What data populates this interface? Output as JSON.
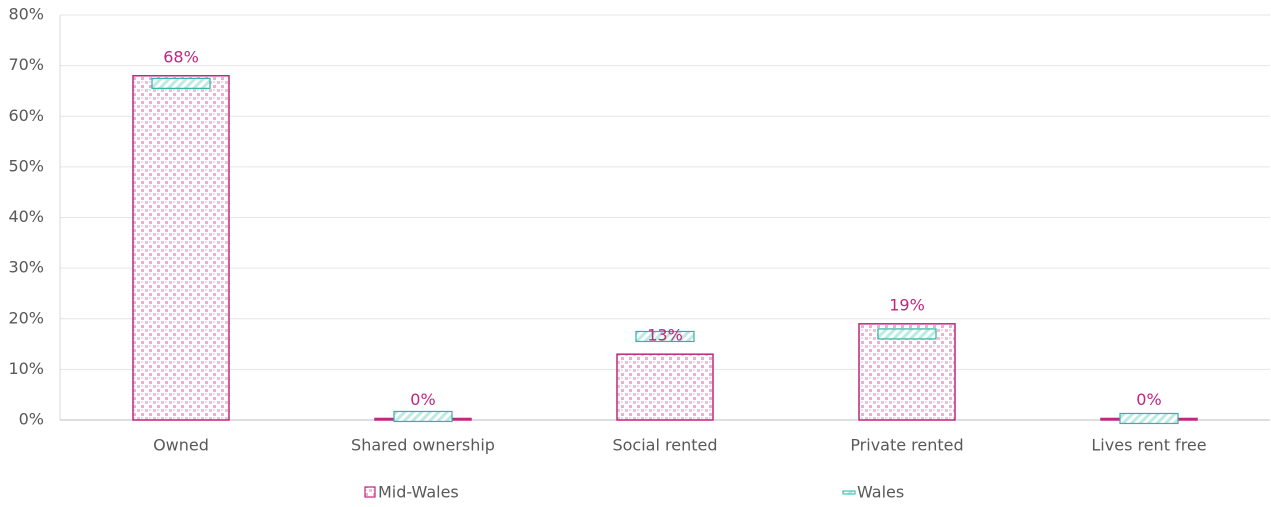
{
  "chart_data": {
    "type": "bar",
    "categories": [
      "Owned",
      "Shared ownership",
      "Social rented",
      "Private rented",
      "Lives rent free"
    ],
    "series": [
      {
        "name": "Mid-Wales",
        "color": "#c0267f",
        "values": [
          68,
          0.3,
          13,
          19,
          0.3
        ],
        "value_labels": [
          "68%",
          "0%",
          "13%",
          "19%",
          "0%"
        ]
      },
      {
        "name": "Wales",
        "color": "#2bb5a5",
        "values": [
          66.5,
          0.7,
          16.5,
          17,
          0.3
        ]
      }
    ],
    "ylim": [
      0,
      80
    ],
    "yticks": [
      {
        "value": 0,
        "label": "0%"
      },
      {
        "value": 10,
        "label": "10%"
      },
      {
        "value": 20,
        "label": "20%"
      },
      {
        "value": 30,
        "label": "30%"
      },
      {
        "value": 40,
        "label": "40%"
      },
      {
        "value": 50,
        "label": "50%"
      },
      {
        "value": 60,
        "label": "60%"
      },
      {
        "value": 70,
        "label": "70%"
      },
      {
        "value": 80,
        "label": "80%"
      }
    ],
    "grid": true,
    "legend": "bottom"
  }
}
